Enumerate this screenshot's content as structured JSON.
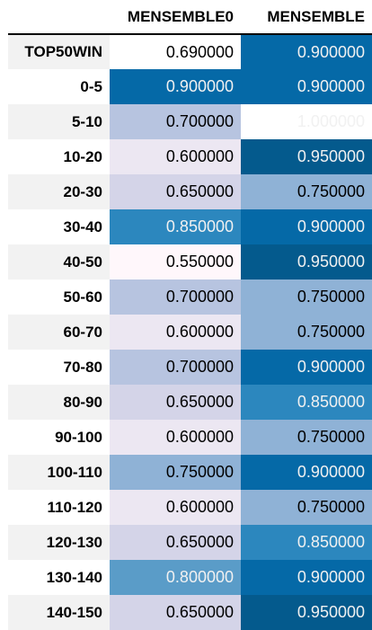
{
  "chart_data": {
    "type": "table",
    "columns": [
      "MENSEMBLE0",
      "MENSEMBLE"
    ],
    "rows": [
      {
        "label": "TOP50WIN",
        "values": [
          "0.690000",
          "0.900000"
        ]
      },
      {
        "label": "0-5",
        "values": [
          "0.900000",
          "0.900000"
        ]
      },
      {
        "label": "5-10",
        "values": [
          "0.700000",
          "1.000000"
        ]
      },
      {
        "label": "10-20",
        "values": [
          "0.600000",
          "0.950000"
        ]
      },
      {
        "label": "20-30",
        "values": [
          "0.650000",
          "0.750000"
        ]
      },
      {
        "label": "30-40",
        "values": [
          "0.850000",
          "0.900000"
        ]
      },
      {
        "label": "40-50",
        "values": [
          "0.550000",
          "0.950000"
        ]
      },
      {
        "label": "50-60",
        "values": [
          "0.700000",
          "0.750000"
        ]
      },
      {
        "label": "60-70",
        "values": [
          "0.600000",
          "0.750000"
        ]
      },
      {
        "label": "70-80",
        "values": [
          "0.700000",
          "0.900000"
        ]
      },
      {
        "label": "80-90",
        "values": [
          "0.650000",
          "0.850000"
        ]
      },
      {
        "label": "90-100",
        "values": [
          "0.600000",
          "0.750000"
        ]
      },
      {
        "label": "100-110",
        "values": [
          "0.750000",
          "0.900000"
        ]
      },
      {
        "label": "110-120",
        "values": [
          "0.600000",
          "0.750000"
        ]
      },
      {
        "label": "120-130",
        "values": [
          "0.650000",
          "0.850000"
        ]
      },
      {
        "label": "130-140",
        "values": [
          "0.800000",
          "0.900000"
        ]
      },
      {
        "label": "140-150",
        "values": [
          "0.650000",
          "0.950000"
        ]
      }
    ],
    "colormap": "PuBu",
    "colors": {
      "0.55": "#fff7fb",
      "0.6": "#ece7f2",
      "0.65": "#d4d4e8",
      "0.7": "#b7c4e0",
      "0.75": "#8fb2d6",
      "0.8": "#5a9cc8",
      "0.85": "#2c87be",
      "0.9": "#0569a7",
      "0.95": "#045a8d",
      "1.0": "#023858"
    }
  }
}
